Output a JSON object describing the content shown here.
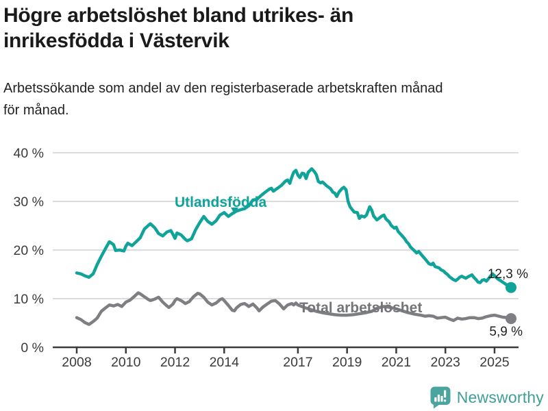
{
  "header": {
    "title_lines": [
      "Högre arbetslöshet bland utrikes- än",
      "inrikesfödda i Västervik"
    ],
    "subtitle_lines": [
      "Arbetssökande som andel av den registerbaserade arbetskraften månad",
      "för månad."
    ]
  },
  "chart_data": {
    "type": "line",
    "title": "Högre arbetslöshet bland utrikes- än inrikesfödda i Västervik",
    "subtitle": "Arbetssökande som andel av den registerbaserade arbetskraften månad för månad.",
    "xlabel": "",
    "ylabel": "",
    "xlim": [
      2007.7,
      2026.1
    ],
    "ylim": [
      0,
      42
    ],
    "grid": "horizontal",
    "legend_position": "inline-labels",
    "style": {
      "grid_color": "#dcdcdc",
      "axis_color": "#3b3b3b",
      "tick_label_color": "#3a3a3a",
      "value_label_color": "#1f1f1f",
      "background": "#ffffff"
    },
    "y_ticks": [
      {
        "v": 0,
        "label": "0 %"
      },
      {
        "v": 10,
        "label": "10 %"
      },
      {
        "v": 20,
        "label": "20 %"
      },
      {
        "v": 30,
        "label": "30 %"
      },
      {
        "v": 40,
        "label": "40 %"
      }
    ],
    "x_ticks": [
      {
        "v": 2008,
        "label": "2008"
      },
      {
        "v": 2010,
        "label": "2010"
      },
      {
        "v": 2012,
        "label": "2012"
      },
      {
        "v": 2014,
        "label": "2014"
      },
      {
        "v": 2017,
        "label": "2017"
      },
      {
        "v": 2019,
        "label": "2019"
      },
      {
        "v": 2021,
        "label": "2021"
      },
      {
        "v": 2023,
        "label": "2023"
      },
      {
        "v": 2025,
        "label": "2025"
      }
    ],
    "series": [
      {
        "id": "utlandsfodda",
        "name": "Utlandsfödda",
        "color": "#0fa39a",
        "end_label": "12,3 %",
        "last_value": 12.3,
        "points": [
          [
            2008.0,
            15.3
          ],
          [
            2008.17,
            15.1
          ],
          [
            2008.33,
            14.7
          ],
          [
            2008.5,
            14.4
          ],
          [
            2008.67,
            15.1
          ],
          [
            2008.83,
            17.0
          ],
          [
            2009.0,
            18.7
          ],
          [
            2009.17,
            20.3
          ],
          [
            2009.33,
            21.7
          ],
          [
            2009.5,
            21.1
          ],
          [
            2009.58,
            19.9
          ],
          [
            2009.75,
            20.0
          ],
          [
            2009.92,
            19.8
          ],
          [
            2010.0,
            20.8
          ],
          [
            2010.08,
            21.4
          ],
          [
            2010.25,
            20.9
          ],
          [
            2010.42,
            21.7
          ],
          [
            2010.58,
            22.5
          ],
          [
            2010.75,
            24.3
          ],
          [
            2010.92,
            25.1
          ],
          [
            2011.0,
            25.4
          ],
          [
            2011.17,
            24.6
          ],
          [
            2011.33,
            23.4
          ],
          [
            2011.5,
            22.9
          ],
          [
            2011.67,
            23.7
          ],
          [
            2011.83,
            24.0
          ],
          [
            2011.92,
            23.2
          ],
          [
            2012.0,
            22.4
          ],
          [
            2012.08,
            23.5
          ],
          [
            2012.25,
            23.1
          ],
          [
            2012.42,
            22.2
          ],
          [
            2012.5,
            21.9
          ],
          [
            2012.67,
            22.3
          ],
          [
            2012.83,
            24.1
          ],
          [
            2013.0,
            25.6
          ],
          [
            2013.17,
            26.9
          ],
          [
            2013.33,
            25.9
          ],
          [
            2013.5,
            25.3
          ],
          [
            2013.67,
            26.0
          ],
          [
            2013.83,
            27.2
          ],
          [
            2014.0,
            27.7
          ],
          [
            2014.17,
            26.9
          ],
          [
            2014.33,
            27.5
          ],
          [
            2014.5,
            28.0
          ],
          [
            2014.67,
            28.3
          ],
          [
            2014.83,
            28.5
          ],
          [
            2015.0,
            29.1
          ],
          [
            2015.17,
            30.3
          ],
          [
            2015.33,
            30.4
          ],
          [
            2015.5,
            31.2
          ],
          [
            2015.67,
            31.9
          ],
          [
            2015.83,
            32.5
          ],
          [
            2015.92,
            32.7
          ],
          [
            2016.0,
            32.1
          ],
          [
            2016.17,
            32.7
          ],
          [
            2016.33,
            33.3
          ],
          [
            2016.5,
            34.2
          ],
          [
            2016.58,
            34.4
          ],
          [
            2016.67,
            33.7
          ],
          [
            2016.75,
            35.0
          ],
          [
            2016.83,
            36.0
          ],
          [
            2016.92,
            36.4
          ],
          [
            2017.0,
            35.4
          ],
          [
            2017.08,
            34.9
          ],
          [
            2017.17,
            35.8
          ],
          [
            2017.25,
            35.7
          ],
          [
            2017.33,
            34.7
          ],
          [
            2017.42,
            36.0
          ],
          [
            2017.56,
            36.7
          ],
          [
            2017.67,
            36.1
          ],
          [
            2017.75,
            35.5
          ],
          [
            2017.83,
            34.1
          ],
          [
            2017.92,
            33.8
          ],
          [
            2018.0,
            34.0
          ],
          [
            2018.17,
            33.2
          ],
          [
            2018.33,
            32.6
          ],
          [
            2018.42,
            31.9
          ],
          [
            2018.5,
            31.7
          ],
          [
            2018.58,
            31.0
          ],
          [
            2018.67,
            31.9
          ],
          [
            2018.79,
            32.6
          ],
          [
            2018.87,
            32.9
          ],
          [
            2018.96,
            32.4
          ],
          [
            2019.04,
            30.0
          ],
          [
            2019.12,
            28.9
          ],
          [
            2019.21,
            28.3
          ],
          [
            2019.29,
            27.8
          ],
          [
            2019.42,
            27.7
          ],
          [
            2019.5,
            26.5
          ],
          [
            2019.58,
            27.0
          ],
          [
            2019.71,
            26.8
          ],
          [
            2019.79,
            27.2
          ],
          [
            2019.92,
            28.9
          ],
          [
            2020.0,
            28.2
          ],
          [
            2020.08,
            27.0
          ],
          [
            2020.21,
            26.2
          ],
          [
            2020.29,
            26.5
          ],
          [
            2020.42,
            27.0
          ],
          [
            2020.5,
            27.2
          ],
          [
            2020.58,
            26.4
          ],
          [
            2020.71,
            25.8
          ],
          [
            2020.79,
            25.1
          ],
          [
            2020.92,
            24.5
          ],
          [
            2021.0,
            24.7
          ],
          [
            2021.08,
            23.8
          ],
          [
            2021.21,
            23.1
          ],
          [
            2021.33,
            22.4
          ],
          [
            2021.42,
            21.7
          ],
          [
            2021.5,
            21.3
          ],
          [
            2021.58,
            20.6
          ],
          [
            2021.75,
            19.8
          ],
          [
            2021.83,
            19.4
          ],
          [
            2021.92,
            19.7
          ],
          [
            2022.0,
            19.2
          ],
          [
            2022.08,
            18.7
          ],
          [
            2022.17,
            18.2
          ],
          [
            2022.33,
            17.2
          ],
          [
            2022.42,
            17.0
          ],
          [
            2022.5,
            17.3
          ],
          [
            2022.58,
            16.6
          ],
          [
            2022.75,
            16.3
          ],
          [
            2022.83,
            15.9
          ],
          [
            2022.92,
            15.7
          ],
          [
            2023.0,
            15.3
          ],
          [
            2023.08,
            15.0
          ],
          [
            2023.17,
            14.5
          ],
          [
            2023.33,
            13.9
          ],
          [
            2023.42,
            13.7
          ],
          [
            2023.5,
            14.0
          ],
          [
            2023.58,
            14.4
          ],
          [
            2023.67,
            14.6
          ],
          [
            2023.75,
            14.4
          ],
          [
            2023.83,
            14.2
          ],
          [
            2023.92,
            14.5
          ],
          [
            2024.0,
            14.7
          ],
          [
            2024.08,
            14.9
          ],
          [
            2024.17,
            14.3
          ],
          [
            2024.25,
            13.9
          ],
          [
            2024.33,
            13.4
          ],
          [
            2024.42,
            13.3
          ],
          [
            2024.5,
            13.8
          ],
          [
            2024.58,
            13.9
          ],
          [
            2024.67,
            13.6
          ],
          [
            2024.75,
            14.1
          ],
          [
            2024.83,
            14.6
          ],
          [
            2024.92,
            15.1
          ],
          [
            2025.0,
            14.7
          ],
          [
            2025.08,
            14.3
          ],
          [
            2025.17,
            13.9
          ],
          [
            2025.25,
            13.7
          ],
          [
            2025.33,
            13.4
          ],
          [
            2025.42,
            13.1
          ],
          [
            2025.5,
            12.8
          ],
          [
            2025.58,
            12.6
          ],
          [
            2025.67,
            12.3
          ]
        ]
      },
      {
        "id": "total-arbetsloshet",
        "name": "Total arbetslöshet",
        "color": "#7e7f83",
        "label_color": "#747579",
        "end_label": "5,9 %",
        "last_value": 5.9,
        "points": [
          [
            2008.0,
            6.1
          ],
          [
            2008.17,
            5.7
          ],
          [
            2008.33,
            5.1
          ],
          [
            2008.5,
            4.7
          ],
          [
            2008.67,
            5.3
          ],
          [
            2008.83,
            6.0
          ],
          [
            2009.0,
            7.4
          ],
          [
            2009.17,
            8.1
          ],
          [
            2009.33,
            8.7
          ],
          [
            2009.5,
            8.5
          ],
          [
            2009.67,
            8.8
          ],
          [
            2009.83,
            8.4
          ],
          [
            2010.0,
            9.3
          ],
          [
            2010.17,
            9.7
          ],
          [
            2010.33,
            10.4
          ],
          [
            2010.5,
            11.2
          ],
          [
            2010.58,
            11.0
          ],
          [
            2010.75,
            10.4
          ],
          [
            2010.92,
            9.8
          ],
          [
            2011.0,
            9.6
          ],
          [
            2011.17,
            9.9
          ],
          [
            2011.33,
            10.3
          ],
          [
            2011.5,
            9.3
          ],
          [
            2011.67,
            8.5
          ],
          [
            2011.75,
            8.2
          ],
          [
            2011.92,
            8.9
          ],
          [
            2012.0,
            9.6
          ],
          [
            2012.08,
            10.0
          ],
          [
            2012.25,
            9.6
          ],
          [
            2012.42,
            9.0
          ],
          [
            2012.58,
            9.4
          ],
          [
            2012.75,
            10.4
          ],
          [
            2012.92,
            11.1
          ],
          [
            2013.0,
            11.0
          ],
          [
            2013.17,
            10.3
          ],
          [
            2013.33,
            9.3
          ],
          [
            2013.5,
            8.7
          ],
          [
            2013.67,
            9.1
          ],
          [
            2013.83,
            9.8
          ],
          [
            2013.92,
            10.0
          ],
          [
            2014.0,
            9.6
          ],
          [
            2014.17,
            8.6
          ],
          [
            2014.33,
            7.6
          ],
          [
            2014.42,
            7.5
          ],
          [
            2014.5,
            8.1
          ],
          [
            2014.67,
            8.8
          ],
          [
            2014.83,
            9.0
          ],
          [
            2014.92,
            8.7
          ],
          [
            2015.0,
            8.4
          ],
          [
            2015.17,
            8.9
          ],
          [
            2015.33,
            8.1
          ],
          [
            2015.42,
            7.5
          ],
          [
            2015.58,
            8.3
          ],
          [
            2015.75,
            8.9
          ],
          [
            2015.92,
            9.5
          ],
          [
            2016.08,
            9.6
          ],
          [
            2016.25,
            8.9
          ],
          [
            2016.42,
            7.9
          ],
          [
            2016.58,
            8.7
          ],
          [
            2016.75,
            9.0
          ],
          [
            2016.83,
            8.7
          ],
          [
            2016.92,
            9.1
          ],
          [
            2017.0,
            8.7
          ],
          [
            2017.25,
            8.2
          ],
          [
            2017.5,
            7.8
          ],
          [
            2017.75,
            7.4
          ],
          [
            2018.0,
            7.1
          ],
          [
            2018.25,
            6.9
          ],
          [
            2018.5,
            6.7
          ],
          [
            2018.75,
            6.6
          ],
          [
            2019.0,
            6.6
          ],
          [
            2019.25,
            6.7
          ],
          [
            2019.5,
            6.9
          ],
          [
            2019.75,
            7.1
          ],
          [
            2020.0,
            7.4
          ],
          [
            2020.25,
            8.1
          ],
          [
            2020.5,
            8.4
          ],
          [
            2020.75,
            8.2
          ],
          [
            2021.0,
            7.9
          ],
          [
            2021.25,
            7.5
          ],
          [
            2021.5,
            7.1
          ],
          [
            2021.75,
            6.8
          ],
          [
            2022.0,
            6.6
          ],
          [
            2022.17,
            6.4
          ],
          [
            2022.33,
            6.5
          ],
          [
            2022.5,
            6.4
          ],
          [
            2022.67,
            6.0
          ],
          [
            2022.83,
            6.1
          ],
          [
            2023.0,
            6.2
          ],
          [
            2023.17,
            5.8
          ],
          [
            2023.33,
            5.5
          ],
          [
            2023.5,
            6.0
          ],
          [
            2023.67,
            5.8
          ],
          [
            2023.83,
            5.9
          ],
          [
            2024.0,
            6.1
          ],
          [
            2024.17,
            6.1
          ],
          [
            2024.33,
            5.9
          ],
          [
            2024.5,
            6.0
          ],
          [
            2024.67,
            6.3
          ],
          [
            2024.83,
            6.5
          ],
          [
            2025.0,
            6.6
          ],
          [
            2025.17,
            6.4
          ],
          [
            2025.33,
            6.2
          ],
          [
            2025.5,
            6.1
          ],
          [
            2025.67,
            5.9
          ]
        ]
      }
    ]
  },
  "footer": {
    "brand": "Newsworthy",
    "logo_icon": "bar-chart-speech-bubble",
    "brand_color": "#3f9e98",
    "icon_color": "#4aa5a0"
  }
}
